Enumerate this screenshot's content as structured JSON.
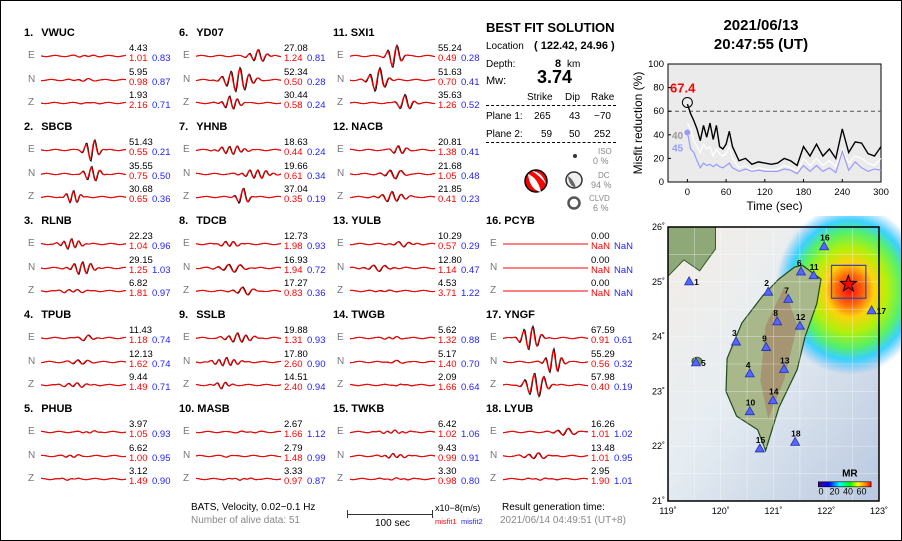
{
  "stations": [
    {
      "num": "1.",
      "name": "VWUC",
      "comps": [
        {
          "c": "E",
          "amp": "4.43",
          "m1": "1.01",
          "m2": "0.83"
        },
        {
          "c": "N",
          "amp": "5.95",
          "m1": "0.98",
          "m2": "0.87"
        },
        {
          "c": "Z",
          "amp": "1.93",
          "m1": "2.16",
          "m2": "0.71"
        }
      ]
    },
    {
      "num": "2.",
      "name": "SBCB",
      "comps": [
        {
          "c": "E",
          "amp": "51.43",
          "m1": "0.55",
          "m2": "0.21"
        },
        {
          "c": "N",
          "amp": "35.55",
          "m1": "0.75",
          "m2": "0.50"
        },
        {
          "c": "Z",
          "amp": "30.68",
          "m1": "0.65",
          "m2": "0.36"
        }
      ]
    },
    {
      "num": "3.",
      "name": "RLNB",
      "comps": [
        {
          "c": "E",
          "amp": "22.23",
          "m1": "1.04",
          "m2": "0.96"
        },
        {
          "c": "N",
          "amp": "29.15",
          "m1": "1.25",
          "m2": "1.03"
        },
        {
          "c": "Z",
          "amp": "6.82",
          "m1": "1.81",
          "m2": "0.97"
        }
      ]
    },
    {
      "num": "4.",
      "name": "TPUB",
      "comps": [
        {
          "c": "E",
          "amp": "11.43",
          "m1": "1.18",
          "m2": "0.74"
        },
        {
          "c": "N",
          "amp": "12.13",
          "m1": "1.62",
          "m2": "0.74"
        },
        {
          "c": "Z",
          "amp": "9.44",
          "m1": "1.49",
          "m2": "0.71"
        }
      ]
    },
    {
      "num": "5.",
      "name": "PHUB",
      "comps": [
        {
          "c": "E",
          "amp": "3.97",
          "m1": "1.05",
          "m2": "0.93"
        },
        {
          "c": "N",
          "amp": "6.62",
          "m1": "1.00",
          "m2": "0.95"
        },
        {
          "c": "Z",
          "amp": "3.12",
          "m1": "1.49",
          "m2": "0.90"
        }
      ]
    },
    {
      "num": "6.",
      "name": "YD07",
      "comps": [
        {
          "c": "E",
          "amp": "27.08",
          "m1": "1.24",
          "m2": "0.81"
        },
        {
          "c": "N",
          "amp": "52.34",
          "m1": "0.50",
          "m2": "0.28"
        },
        {
          "c": "Z",
          "amp": "30.44",
          "m1": "0.58",
          "m2": "0.24"
        }
      ]
    },
    {
      "num": "7.",
      "name": "YHNB",
      "comps": [
        {
          "c": "E",
          "amp": "18.63",
          "m1": "0.44",
          "m2": "0.24"
        },
        {
          "c": "N",
          "amp": "19.66",
          "m1": "0.61",
          "m2": "0.34"
        },
        {
          "c": "Z",
          "amp": "37.04",
          "m1": "0.35",
          "m2": "0.19"
        }
      ]
    },
    {
      "num": "8.",
      "name": "TDCB",
      "comps": [
        {
          "c": "E",
          "amp": "12.73",
          "m1": "1.98",
          "m2": "0.93"
        },
        {
          "c": "N",
          "amp": "16.93",
          "m1": "1.94",
          "m2": "0.72"
        },
        {
          "c": "Z",
          "amp": "17.27",
          "m1": "0.83",
          "m2": "0.36"
        }
      ]
    },
    {
      "num": "9.",
      "name": "SSLB",
      "comps": [
        {
          "c": "E",
          "amp": "19.88",
          "m1": "1.31",
          "m2": "0.93"
        },
        {
          "c": "N",
          "amp": "17.80",
          "m1": "2.60",
          "m2": "0.90"
        },
        {
          "c": "Z",
          "amp": "14.51",
          "m1": "2.40",
          "m2": "0.94"
        }
      ]
    },
    {
      "num": "10.",
      "name": "MASB",
      "comps": [
        {
          "c": "E",
          "amp": "2.67",
          "m1": "1.66",
          "m2": "1.12"
        },
        {
          "c": "N",
          "amp": "2.79",
          "m1": "1.48",
          "m2": "0.99"
        },
        {
          "c": "Z",
          "amp": "3.33",
          "m1": "0.97",
          "m2": "0.87"
        }
      ]
    },
    {
      "num": "11.",
      "name": "SXI1",
      "comps": [
        {
          "c": "E",
          "amp": "55.24",
          "m1": "0.49",
          "m2": "0.28"
        },
        {
          "c": "N",
          "amp": "51.63",
          "m1": "0.70",
          "m2": "0.41"
        },
        {
          "c": "Z",
          "amp": "35.63",
          "m1": "1.26",
          "m2": "0.52"
        }
      ]
    },
    {
      "num": "12.",
      "name": "NACB",
      "comps": [
        {
          "c": "E",
          "amp": "20.81",
          "m1": "1.38",
          "m2": "0.41"
        },
        {
          "c": "N",
          "amp": "21.68",
          "m1": "1.05",
          "m2": "0.48"
        },
        {
          "c": "Z",
          "amp": "21.85",
          "m1": "0.41",
          "m2": "0.23"
        }
      ]
    },
    {
      "num": "13.",
      "name": "YULB",
      "comps": [
        {
          "c": "E",
          "amp": "10.29",
          "m1": "0.57",
          "m2": "0.29"
        },
        {
          "c": "N",
          "amp": "12.80",
          "m1": "1.14",
          "m2": "0.47"
        },
        {
          "c": "Z",
          "amp": "4.53",
          "m1": "3.71",
          "m2": "1.22"
        }
      ]
    },
    {
      "num": "14.",
      "name": "TWGB",
      "comps": [
        {
          "c": "E",
          "amp": "5.62",
          "m1": "1.32",
          "m2": "0.88"
        },
        {
          "c": "N",
          "amp": "5.17",
          "m1": "1.40",
          "m2": "0.70"
        },
        {
          "c": "Z",
          "amp": "2.09",
          "m1": "1.66",
          "m2": "0.64"
        }
      ]
    },
    {
      "num": "15.",
      "name": "TWKB",
      "comps": [
        {
          "c": "E",
          "amp": "6.42",
          "m1": "1.02",
          "m2": "1.06"
        },
        {
          "c": "N",
          "amp": "9.43",
          "m1": "0.99",
          "m2": "0.91"
        },
        {
          "c": "Z",
          "amp": "3.30",
          "m1": "0.98",
          "m2": "0.80"
        }
      ]
    },
    {
      "num": "16.",
      "name": "PCYB",
      "comps": [
        {
          "c": "E",
          "amp": "0.00",
          "m1": "NaN",
          "m2": "NaN"
        },
        {
          "c": "N",
          "amp": "0.00",
          "m1": "NaN",
          "m2": "NaN"
        },
        {
          "c": "Z",
          "amp": "0.00",
          "m1": "NaN",
          "m2": "NaN"
        }
      ]
    },
    {
      "num": "17.",
      "name": "YNGF",
      "comps": [
        {
          "c": "E",
          "amp": "67.59",
          "m1": "0.91",
          "m2": "0.61"
        },
        {
          "c": "N",
          "amp": "55.29",
          "m1": "0.56",
          "m2": "0.32"
        },
        {
          "c": "Z",
          "amp": "57.98",
          "m1": "0.40",
          "m2": "0.19"
        }
      ]
    },
    {
      "num": "18.",
      "name": "LYUB",
      "comps": [
        {
          "c": "E",
          "amp": "16.26",
          "m1": "1.01",
          "m2": "1.02"
        },
        {
          "c": "N",
          "amp": "13.48",
          "m1": "1.01",
          "m2": "0.95"
        },
        {
          "c": "Z",
          "amp": "2.95",
          "m1": "1.90",
          "m2": "1.01"
        }
      ]
    }
  ],
  "solution": {
    "title": "BEST FIT SOLUTION",
    "location_label": "Location",
    "location_value": "( 122.42,  24.96 )",
    "depth_label": "Depth:",
    "depth_value": "8",
    "depth_unit": "km",
    "mw_label": "Mw:",
    "mw_value": "3.74",
    "headers": [
      "Strike",
      "Dip",
      "Rake"
    ],
    "planes": [
      {
        "label": "Plane 1:",
        "strike": "265",
        "dip": "43",
        "rake": "−70"
      },
      {
        "label": "Plane 2:",
        "strike": "59",
        "dip": "50",
        "rake": "252"
      }
    ],
    "iso_label": "ISO",
    "iso_pct": "0 %",
    "dc_label": "DC",
    "dc_pct": "94 %",
    "clvd_label": "CLVD",
    "clvd_pct": "6 %"
  },
  "header": {
    "date": "2021/06/13",
    "time": "20:47:55  (UT)"
  },
  "footer": {
    "network": "BATS, Velocity, 0.02−0.1 Hz",
    "alive": "Number of alive data: 51",
    "scale": "100 sec",
    "unit": "x10−8(m/s)",
    "misfit1": "misfit1",
    "misfit2": "misfit2",
    "gen_label": "Result generation time:",
    "gen_time": "2021/06/14 04:49:51 (UT+8)"
  },
  "chart_data": {
    "type": "line",
    "xlabel": "Time (sec)",
    "ylabel": "Misfit reduction (%)",
    "xlim": [
      -30,
      300
    ],
    "ylim": [
      0,
      100
    ],
    "xticks": [
      "0",
      "60",
      "120",
      "180",
      "240",
      "300"
    ],
    "yticks": [
      "0",
      "20",
      "40",
      "60",
      "80",
      "100"
    ],
    "threshold": 60,
    "peak_label": "67.4",
    "peak": {
      "x": 0,
      "y": 67.4
    },
    "label_white": "40",
    "label_blue": "45",
    "x": [
      0,
      5,
      10,
      15,
      20,
      25,
      30,
      35,
      40,
      45,
      50,
      55,
      60,
      65,
      70,
      80,
      90,
      100,
      110,
      120,
      130,
      140,
      150,
      160,
      170,
      180,
      190,
      200,
      210,
      220,
      230,
      240,
      250,
      260,
      270,
      280,
      290,
      300
    ],
    "series": [
      {
        "color": "#000000",
        "values": [
          66,
          58,
          52,
          45,
          35,
          48,
          38,
          50,
          36,
          48,
          30,
          28,
          32,
          43,
          30,
          18,
          20,
          15,
          17,
          16,
          15,
          16,
          20,
          18,
          14,
          30,
          22,
          32,
          22,
          28,
          20,
          45,
          25,
          34,
          33,
          24,
          22,
          30
        ]
      },
      {
        "color": "#ffffff",
        "values": [
          50,
          45,
          35,
          30,
          25,
          32,
          28,
          30,
          22,
          28,
          24,
          22,
          24,
          30,
          20,
          12,
          14,
          10,
          12,
          11,
          10,
          11,
          14,
          12,
          9,
          20,
          14,
          20,
          14,
          18,
          13,
          28,
          16,
          22,
          20,
          16,
          14,
          20
        ]
      },
      {
        "color": "#9999ff",
        "values": [
          42,
          28,
          25,
          18,
          12,
          16,
          14,
          15,
          13,
          15,
          13,
          12,
          14,
          16,
          12,
          9,
          11,
          9,
          10,
          9,
          9,
          9,
          11,
          10,
          7,
          14,
          9,
          14,
          9,
          12,
          8,
          26,
          10,
          17,
          12,
          9,
          11,
          10
        ]
      }
    ]
  },
  "map": {
    "title_colorbar": "MR",
    "colorbar_ticks": [
      "0",
      "20",
      "40",
      "60"
    ],
    "lon_ticks": [
      "119˚",
      "120˚",
      "121˚",
      "122˚",
      "123˚"
    ],
    "lat_ticks": [
      "26˚",
      "25˚",
      "24˚",
      "23˚",
      "22˚",
      "21˚"
    ],
    "epicenter": {
      "lon": 122.42,
      "lat": 24.96
    },
    "stations": [
      {
        "id": "1",
        "lon": 119.4,
        "lat": 25.0
      },
      {
        "id": "2",
        "lon": 120.9,
        "lat": 24.81
      },
      {
        "id": "3",
        "lon": 120.29,
        "lat": 23.9
      },
      {
        "id": "4",
        "lon": 120.55,
        "lat": 23.32
      },
      {
        "id": "5",
        "lon": 119.53,
        "lat": 23.52
      },
      {
        "id": "6",
        "lon": 121.52,
        "lat": 25.18
      },
      {
        "id": "7",
        "lon": 121.28,
        "lat": 24.68
      },
      {
        "id": "8",
        "lon": 121.07,
        "lat": 24.27
      },
      {
        "id": "9",
        "lon": 120.86,
        "lat": 23.8
      },
      {
        "id": "10",
        "lon": 120.55,
        "lat": 22.63
      },
      {
        "id": "11",
        "lon": 121.76,
        "lat": 25.11
      },
      {
        "id": "12",
        "lon": 121.5,
        "lat": 24.19
      },
      {
        "id": "13",
        "lon": 121.2,
        "lat": 23.4
      },
      {
        "id": "14",
        "lon": 120.99,
        "lat": 22.83
      },
      {
        "id": "15",
        "lon": 120.74,
        "lat": 21.95
      },
      {
        "id": "16",
        "lon": 121.96,
        "lat": 25.64
      },
      {
        "id": "17",
        "lon": 122.86,
        "lat": 24.47
      },
      {
        "id": "18",
        "lon": 121.41,
        "lat": 22.07
      }
    ]
  }
}
